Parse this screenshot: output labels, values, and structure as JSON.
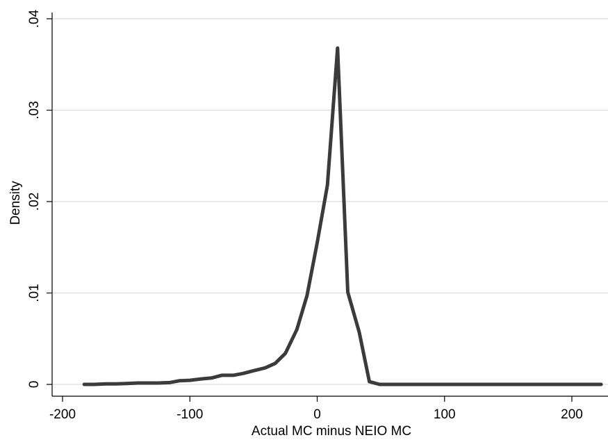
{
  "chart_data": {
    "type": "line",
    "title": "",
    "xlabel": "Actual MC minus NEIO MC",
    "ylabel": "Density",
    "xlim": [
      -200,
      225
    ],
    "ylim": [
      0,
      0.04
    ],
    "grid": "horizontal",
    "legend": "none",
    "line_color": "#3b3b3b",
    "x_ticks": [
      {
        "value": -200,
        "label": "-200"
      },
      {
        "value": -100,
        "label": "-100"
      },
      {
        "value": 0,
        "label": "0"
      },
      {
        "value": 100,
        "label": "100"
      },
      {
        "value": 200,
        "label": "200"
      }
    ],
    "y_ticks": [
      {
        "value": 0,
        "label": "0"
      },
      {
        "value": 0.01,
        "label": ".01"
      },
      {
        "value": 0.02,
        "label": ".02"
      },
      {
        "value": 0.03,
        "label": ".03"
      },
      {
        "value": 0.04,
        "label": ".04"
      }
    ],
    "series": [
      {
        "x": [
          -183,
          -175,
          -166,
          -158,
          -150,
          -141,
          -133,
          -125,
          -116,
          -108,
          -100,
          -91,
          -83,
          -75,
          -66,
          -58,
          -50,
          -41,
          -33,
          -25,
          -16,
          -8,
          0,
          8,
          16,
          24,
          33,
          41,
          49,
          58,
          66,
          75,
          83,
          100,
          150,
          200,
          223
        ],
        "y": [
          0,
          0,
          5e-05,
          5e-05,
          0.0001,
          0.00015,
          0.00015,
          0.00015,
          0.0002,
          0.0004,
          0.00045,
          0.0006,
          0.0007,
          0.001,
          0.001,
          0.0012,
          0.0015,
          0.0018,
          0.0023,
          0.0034,
          0.006,
          0.0097,
          0.0155,
          0.0218,
          0.0368,
          0.0101,
          0.0057,
          0.0003,
          0,
          0,
          0,
          0,
          0,
          0,
          0,
          0,
          0
        ]
      }
    ]
  }
}
